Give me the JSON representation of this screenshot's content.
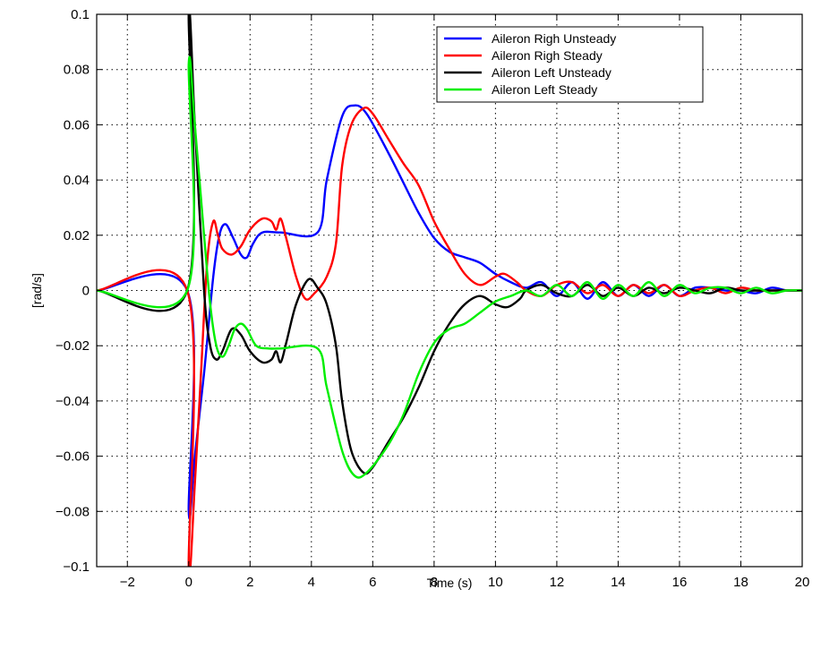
{
  "chart_data": {
    "type": "line",
    "title": "",
    "xlabel": "Time (s)",
    "ylabel": "[rad/s]",
    "xlim": [
      -3,
      20
    ],
    "ylim": [
      -0.1,
      0.1
    ],
    "xticks": [
      -2,
      0,
      2,
      4,
      6,
      8,
      10,
      12,
      14,
      16,
      18,
      20
    ],
    "xtick_labels": [
      "−2",
      "0",
      "2",
      "4",
      "6",
      "8",
      "10",
      "12",
      "14",
      "16",
      "18",
      "20"
    ],
    "yticks": [
      -0.1,
      -0.08,
      -0.06,
      -0.04,
      -0.02,
      0,
      0.02,
      0.04,
      0.06,
      0.08,
      0.1
    ],
    "ytick_labels": [
      "−0.1",
      "−0.08",
      "−0.06",
      "−0.04",
      "−0.02",
      "0",
      "0.02",
      "0.04",
      "0.06",
      "0.08",
      "0.1"
    ],
    "grid": true,
    "legend_position": "top-right",
    "series": [
      {
        "name": "Aileron Righ Unsteady",
        "color": "#0000ff",
        "points": [
          [
            -3,
            0
          ],
          [
            -0.05,
            0
          ],
          [
            0.0,
            -0.08
          ],
          [
            0.2,
            -0.06
          ],
          [
            0.5,
            -0.03
          ],
          [
            0.8,
            0.005
          ],
          [
            1.0,
            0.02
          ],
          [
            1.2,
            0.024
          ],
          [
            1.45,
            0.019
          ],
          [
            1.7,
            0.013
          ],
          [
            1.9,
            0.012
          ],
          [
            2.1,
            0.017
          ],
          [
            2.4,
            0.021
          ],
          [
            3.0,
            0.021
          ],
          [
            4.2,
            0.021
          ],
          [
            4.5,
            0.04
          ],
          [
            5.0,
            0.063
          ],
          [
            5.4,
            0.067
          ],
          [
            5.8,
            0.064
          ],
          [
            6.5,
            0.05
          ],
          [
            7.0,
            0.039
          ],
          [
            7.5,
            0.028
          ],
          [
            8.0,
            0.019
          ],
          [
            8.5,
            0.014
          ],
          [
            9.0,
            0.012
          ],
          [
            9.5,
            0.01
          ],
          [
            10.0,
            0.006
          ],
          [
            10.5,
            0.003
          ],
          [
            11.0,
            0.001
          ],
          [
            11.5,
            0.003
          ],
          [
            12.0,
            -0.002
          ],
          [
            12.5,
            0.003
          ],
          [
            13.0,
            -0.003
          ],
          [
            13.5,
            0.003
          ],
          [
            14.0,
            -0.002
          ],
          [
            14.5,
            0.002
          ],
          [
            15.0,
            -0.002
          ],
          [
            15.5,
            0.002
          ],
          [
            16.0,
            -0.002
          ],
          [
            16.5,
            0.001
          ],
          [
            17.0,
            0.001
          ],
          [
            17.5,
            0.0
          ],
          [
            18.0,
            0.0
          ],
          [
            18.5,
            -0.001
          ],
          [
            19.0,
            0.001
          ],
          [
            19.5,
            0.0
          ],
          [
            20,
            0
          ]
        ]
      },
      {
        "name": "Aileron Righ Steady",
        "color": "#ff0000",
        "points": [
          [
            -3,
            0
          ],
          [
            -0.05,
            0
          ],
          [
            0.0,
            -0.1
          ],
          [
            0.2,
            -0.07
          ],
          [
            0.4,
            -0.03
          ],
          [
            0.6,
            0.01
          ],
          [
            0.8,
            0.025
          ],
          [
            0.95,
            0.02
          ],
          [
            1.1,
            0.015
          ],
          [
            1.4,
            0.013
          ],
          [
            1.7,
            0.016
          ],
          [
            2.0,
            0.022
          ],
          [
            2.4,
            0.026
          ],
          [
            2.7,
            0.025
          ],
          [
            2.85,
            0.022
          ],
          [
            3.0,
            0.026
          ],
          [
            3.2,
            0.018
          ],
          [
            3.5,
            0.005
          ],
          [
            3.8,
            -0.003
          ],
          [
            4.1,
            -0.001
          ],
          [
            4.5,
            0.005
          ],
          [
            4.8,
            0.017
          ],
          [
            5.0,
            0.045
          ],
          [
            5.3,
            0.06
          ],
          [
            5.7,
            0.066
          ],
          [
            6.0,
            0.064
          ],
          [
            6.5,
            0.055
          ],
          [
            7.0,
            0.046
          ],
          [
            7.5,
            0.038
          ],
          [
            8.0,
            0.025
          ],
          [
            8.5,
            0.015
          ],
          [
            9.0,
            0.006
          ],
          [
            9.5,
            0.002
          ],
          [
            10.0,
            0.005
          ],
          [
            10.3,
            0.006
          ],
          [
            10.7,
            0.003
          ],
          [
            11.0,
            0.0
          ],
          [
            11.5,
            -0.002
          ],
          [
            12.0,
            0.002
          ],
          [
            12.5,
            0.003
          ],
          [
            13.0,
            -0.001
          ],
          [
            13.5,
            0.002
          ],
          [
            14.0,
            -0.002
          ],
          [
            14.5,
            0.002
          ],
          [
            15.0,
            -0.001
          ],
          [
            15.5,
            0.002
          ],
          [
            16.0,
            -0.002
          ],
          [
            16.5,
            0.0
          ],
          [
            17.0,
            0.001
          ],
          [
            17.5,
            -0.001
          ],
          [
            18.0,
            0.001
          ],
          [
            18.5,
            0.0
          ],
          [
            19.0,
            0.0
          ],
          [
            19.5,
            0.0
          ],
          [
            20,
            0
          ]
        ]
      },
      {
        "name": "Aileron Left Unsteady",
        "color": "#000000",
        "points": [
          [
            -3,
            0
          ],
          [
            -0.05,
            0
          ],
          [
            0.0,
            0.1
          ],
          [
            0.2,
            0.06
          ],
          [
            0.5,
            0.0
          ],
          [
            0.7,
            -0.02
          ],
          [
            0.9,
            -0.025
          ],
          [
            1.1,
            -0.022
          ],
          [
            1.4,
            -0.014
          ],
          [
            1.7,
            -0.016
          ],
          [
            2.0,
            -0.022
          ],
          [
            2.4,
            -0.026
          ],
          [
            2.7,
            -0.025
          ],
          [
            2.85,
            -0.022
          ],
          [
            3.0,
            -0.026
          ],
          [
            3.2,
            -0.018
          ],
          [
            3.5,
            -0.005
          ],
          [
            3.9,
            0.004
          ],
          [
            4.2,
            0.001
          ],
          [
            4.5,
            -0.005
          ],
          [
            4.8,
            -0.02
          ],
          [
            5.0,
            -0.04
          ],
          [
            5.3,
            -0.058
          ],
          [
            5.7,
            -0.066
          ],
          [
            6.0,
            -0.064
          ],
          [
            6.5,
            -0.055
          ],
          [
            7.0,
            -0.046
          ],
          [
            7.5,
            -0.035
          ],
          [
            8.0,
            -0.022
          ],
          [
            8.5,
            -0.012
          ],
          [
            9.0,
            -0.005
          ],
          [
            9.5,
            -0.002
          ],
          [
            10.0,
            -0.005
          ],
          [
            10.4,
            -0.006
          ],
          [
            10.8,
            -0.003
          ],
          [
            11.0,
            0.0
          ],
          [
            11.5,
            0.002
          ],
          [
            12.0,
            -0.001
          ],
          [
            12.5,
            -0.002
          ],
          [
            13.0,
            0.002
          ],
          [
            13.5,
            -0.002
          ],
          [
            14.0,
            0.001
          ],
          [
            14.5,
            -0.002
          ],
          [
            15.0,
            0.001
          ],
          [
            15.5,
            -0.001
          ],
          [
            16.0,
            0.001
          ],
          [
            16.5,
            0.0
          ],
          [
            17.0,
            -0.001
          ],
          [
            17.5,
            0.001
          ],
          [
            18.0,
            0.0
          ],
          [
            18.5,
            0.0
          ],
          [
            19.0,
            0.0
          ],
          [
            19.5,
            0.0
          ],
          [
            20,
            0
          ]
        ]
      },
      {
        "name": "Aileron Left Steady",
        "color": "#00ee00",
        "points": [
          [
            -3,
            0
          ],
          [
            -0.05,
            0
          ],
          [
            0.0,
            0.082
          ],
          [
            0.2,
            0.06
          ],
          [
            0.5,
            0.02
          ],
          [
            0.7,
            -0.005
          ],
          [
            0.9,
            -0.02
          ],
          [
            1.1,
            -0.024
          ],
          [
            1.3,
            -0.02
          ],
          [
            1.5,
            -0.014
          ],
          [
            1.7,
            -0.012
          ],
          [
            1.9,
            -0.014
          ],
          [
            2.2,
            -0.02
          ],
          [
            2.6,
            -0.021
          ],
          [
            3.0,
            -0.021
          ],
          [
            4.2,
            -0.021
          ],
          [
            4.5,
            -0.035
          ],
          [
            5.0,
            -0.058
          ],
          [
            5.4,
            -0.067
          ],
          [
            5.8,
            -0.066
          ],
          [
            6.5,
            -0.056
          ],
          [
            7.0,
            -0.045
          ],
          [
            7.5,
            -0.03
          ],
          [
            8.0,
            -0.019
          ],
          [
            8.5,
            -0.014
          ],
          [
            9.0,
            -0.012
          ],
          [
            9.5,
            -0.008
          ],
          [
            10.0,
            -0.004
          ],
          [
            10.5,
            -0.002
          ],
          [
            11.0,
            0.0
          ],
          [
            11.5,
            -0.002
          ],
          [
            12.0,
            0.002
          ],
          [
            12.5,
            -0.002
          ],
          [
            13.0,
            0.003
          ],
          [
            13.5,
            -0.003
          ],
          [
            14.0,
            0.002
          ],
          [
            14.5,
            -0.002
          ],
          [
            15.0,
            0.003
          ],
          [
            15.5,
            -0.002
          ],
          [
            16.0,
            0.002
          ],
          [
            16.5,
            -0.001
          ],
          [
            17.0,
            0.001
          ],
          [
            17.5,
            0.001
          ],
          [
            18.0,
            -0.001
          ],
          [
            18.5,
            0.001
          ],
          [
            19.0,
            -0.001
          ],
          [
            19.5,
            0.0
          ],
          [
            20,
            0
          ]
        ]
      }
    ]
  }
}
